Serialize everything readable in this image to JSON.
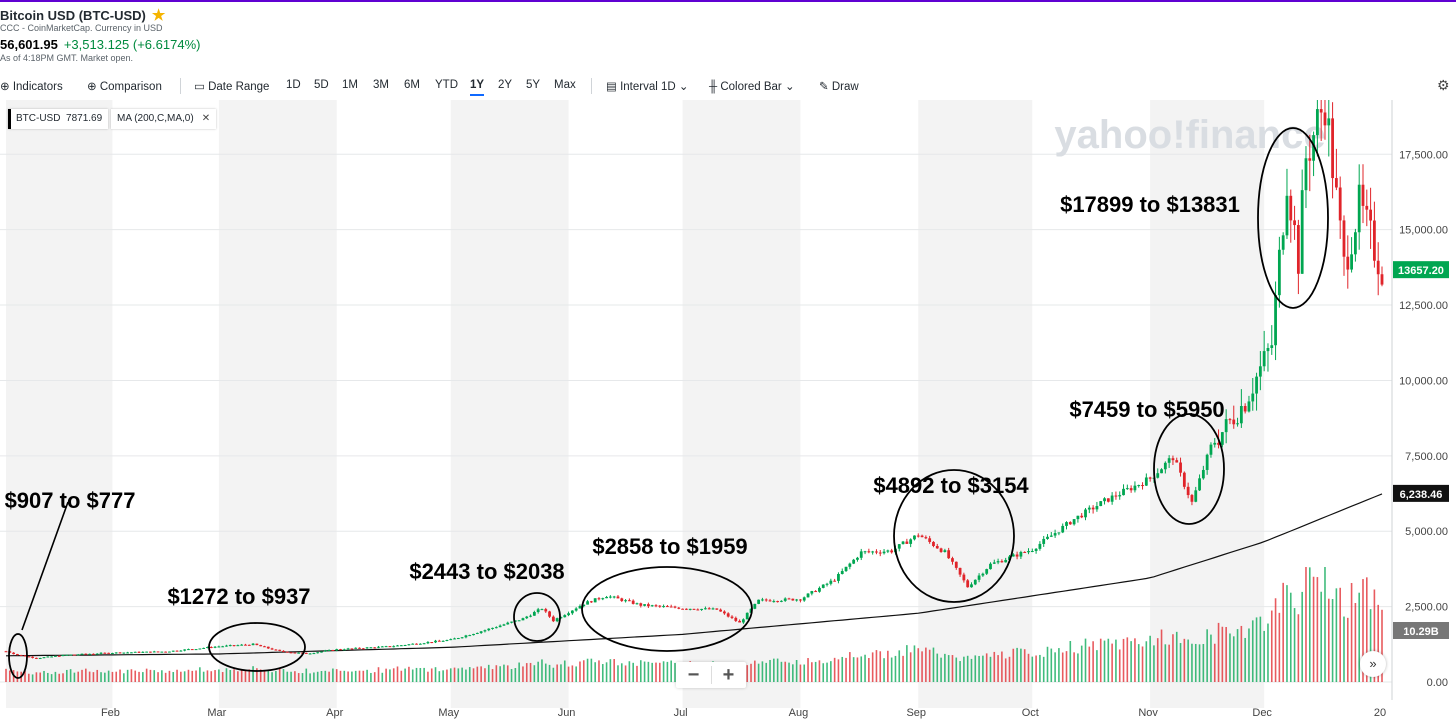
{
  "header": {
    "title": "Bitcoin USD (BTC-USD)",
    "subtitle": "CCC - CoinMarketCap. Currency in USD",
    "price": "56,601.95",
    "change": "+3,513.125 (+6.6174%)",
    "as_of": "As of 4:18PM GMT. Market open."
  },
  "toolbar": {
    "indicators": "Indicators",
    "comparison": "Comparison",
    "date_range": "Date Range",
    "ranges": [
      "1D",
      "5D",
      "1M",
      "3M",
      "6M",
      "YTD",
      "1Y",
      "2Y",
      "5Y",
      "Max"
    ],
    "active_range": "1Y",
    "interval": "Interval",
    "interval_value": "1D",
    "colored_bar": "Colored Bar",
    "draw": "Draw"
  },
  "legend": {
    "symbol": "BTC-USD",
    "symbol_value": "7871.69",
    "ma": "MA (200,C,MA,0)"
  },
  "price_badges": {
    "last": "13657.20",
    "ma": "6,238.46",
    "volume": "10.29B"
  },
  "watermark": "yahoo!finance",
  "colors": {
    "up": "#00a651",
    "down": "#e0242a",
    "ma_line": "#111111",
    "band": "#f3f3f3",
    "badge_last": "#00a651",
    "badge_ma": "#111111",
    "badge_vol": "#777777",
    "annotation_ellipse": "#000000"
  },
  "icons": [
    "indicators-icon",
    "comparison-icon",
    "calendar-icon",
    "interval-icon",
    "colored-bar-icon",
    "draw-icon",
    "settings-icon",
    "star-icon"
  ],
  "zoom": {
    "minus": "−",
    "plus": "+"
  },
  "scroll_button": "»",
  "chart_data": {
    "type": "candlestick",
    "y_axis": {
      "ticks": [
        0,
        2500,
        5000,
        7500,
        10000,
        12500,
        15000,
        17500
      ],
      "tick_labels": [
        "0.00",
        "2,500.00",
        "5,000.00",
        "7,500.00",
        "10,000.00",
        "12,500.00",
        "15,000.00",
        "17,500.00"
      ],
      "range": [
        0,
        19300
      ]
    },
    "x_axis": {
      "months": [
        {
          "label": "Feb",
          "date": "2017-02-01"
        },
        {
          "label": "Mar",
          "date": "2017-03-01"
        },
        {
          "label": "Apr",
          "date": "2017-04-01"
        },
        {
          "label": "May",
          "date": "2017-05-01"
        },
        {
          "label": "Jun",
          "date": "2017-06-01"
        },
        {
          "label": "Jul",
          "date": "2017-07-01"
        },
        {
          "label": "Aug",
          "date": "2017-08-01"
        },
        {
          "label": "Sep",
          "date": "2017-09-01"
        },
        {
          "label": "Oct",
          "date": "2017-10-01"
        },
        {
          "label": "Nov",
          "date": "2017-11-01"
        },
        {
          "label": "Dec",
          "date": "2017-12-01"
        },
        {
          "label": "20",
          "date": "2018-01-01"
        }
      ],
      "start_date": "2017-01-04",
      "end_date": "2018-01-01"
    },
    "close_series": [
      {
        "date": "2017-01-04",
        "close": 1020
      },
      {
        "date": "2017-01-07",
        "close": 900
      },
      {
        "date": "2017-01-12",
        "close": 790
      },
      {
        "date": "2017-01-20",
        "close": 900
      },
      {
        "date": "2017-02-01",
        "close": 970
      },
      {
        "date": "2017-02-15",
        "close": 1010
      },
      {
        "date": "2017-03-01",
        "close": 1180
      },
      {
        "date": "2017-03-10",
        "close": 1250
      },
      {
        "date": "2017-03-17",
        "close": 1020
      },
      {
        "date": "2017-03-24",
        "close": 940
      },
      {
        "date": "2017-04-01",
        "close": 1080
      },
      {
        "date": "2017-04-15",
        "close": 1180
      },
      {
        "date": "2017-05-01",
        "close": 1400
      },
      {
        "date": "2017-05-10",
        "close": 1720
      },
      {
        "date": "2017-05-20",
        "close": 2100
      },
      {
        "date": "2017-05-25",
        "close": 2440
      },
      {
        "date": "2017-05-28",
        "close": 2040
      },
      {
        "date": "2017-06-05",
        "close": 2600
      },
      {
        "date": "2017-06-11",
        "close": 2860
      },
      {
        "date": "2017-06-20",
        "close": 2550
      },
      {
        "date": "2017-07-01",
        "close": 2450
      },
      {
        "date": "2017-07-10",
        "close": 2400
      },
      {
        "date": "2017-07-16",
        "close": 1960
      },
      {
        "date": "2017-07-21",
        "close": 2700
      },
      {
        "date": "2017-08-01",
        "close": 2750
      },
      {
        "date": "2017-08-10",
        "close": 3400
      },
      {
        "date": "2017-08-17",
        "close": 4300
      },
      {
        "date": "2017-08-25",
        "close": 4350
      },
      {
        "date": "2017-09-01",
        "close": 4890
      },
      {
        "date": "2017-09-08",
        "close": 4300
      },
      {
        "date": "2017-09-14",
        "close": 3160
      },
      {
        "date": "2017-09-20",
        "close": 3900
      },
      {
        "date": "2017-10-01",
        "close": 4400
      },
      {
        "date": "2017-10-12",
        "close": 5400
      },
      {
        "date": "2017-10-20",
        "close": 6000
      },
      {
        "date": "2017-11-01",
        "close": 6750
      },
      {
        "date": "2017-11-07",
        "close": 7460
      },
      {
        "date": "2017-11-12",
        "close": 5950
      },
      {
        "date": "2017-11-17",
        "close": 7800
      },
      {
        "date": "2017-11-26",
        "close": 9300
      },
      {
        "date": "2017-12-03",
        "close": 11200
      },
      {
        "date": "2017-12-07",
        "close": 16800
      },
      {
        "date": "2017-12-10",
        "close": 14000
      },
      {
        "date": "2017-12-12",
        "close": 17400
      },
      {
        "date": "2017-12-17",
        "close": 19300
      },
      {
        "date": "2017-12-22",
        "close": 13800
      },
      {
        "date": "2017-12-26",
        "close": 15800
      },
      {
        "date": "2018-01-01",
        "close": 13657
      }
    ],
    "moving_average": [
      {
        "date": "2017-01-04",
        "value": 870
      },
      {
        "date": "2017-03-01",
        "value": 930
      },
      {
        "date": "2017-05-01",
        "value": 1150
      },
      {
        "date": "2017-07-01",
        "value": 1580
      },
      {
        "date": "2017-09-01",
        "value": 2280
      },
      {
        "date": "2017-11-01",
        "value": 3450
      },
      {
        "date": "2017-12-01",
        "value": 4650
      },
      {
        "date": "2018-01-01",
        "value": 6238
      }
    ],
    "last_price": 13657.2,
    "ma_last": 6238.46,
    "annotations": [
      {
        "text": "$907 to $777",
        "date": "2017-01-06"
      },
      {
        "text": "$1272 to $937",
        "date": "2017-03-12"
      },
      {
        "text": "$2443 to $2038",
        "date": "2017-05-26"
      },
      {
        "text": "$2858 to $1959",
        "date": "2017-06-23"
      },
      {
        "text": "$4892 to $3154",
        "date": "2017-09-12"
      },
      {
        "text": "$7459 to $5950",
        "date": "2017-11-10"
      },
      {
        "text": "$17899 to $13831",
        "date": "2017-12-14"
      }
    ]
  }
}
